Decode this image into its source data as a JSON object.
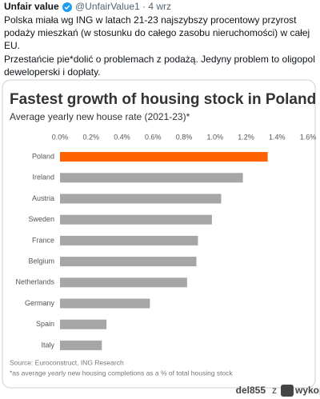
{
  "tweet": {
    "name": "Unfair value",
    "handle": "@UnfairValue1 · 4 wrz",
    "paragraphs": [
      "Polska miała wg ING w latach 21-23 najszybszy procentowy przyrost  podaży mieszkań (w stosunku do całego zasobu nieruchomości) w całej EU.",
      "Przestańcie pie*dolić o problemach z podażą. Jedyny problem to oligopol deweloperski i dopłaty."
    ]
  },
  "chart_data": {
    "type": "hbar",
    "title": "Fastest growth of housing stock in Poland",
    "subtitle": "Average yearly new house rate (2021-23)*",
    "categories": [
      "Poland",
      "Ireland",
      "Austria",
      "Sweden",
      "France",
      "Belgium",
      "Netherlands",
      "Germany",
      "Spain",
      "Italy"
    ],
    "values": [
      1.34,
      1.18,
      1.04,
      0.98,
      0.89,
      0.88,
      0.82,
      0.58,
      0.3,
      0.27
    ],
    "colors": [
      "#ff6200",
      "#a6a6a6",
      "#a6a6a6",
      "#a6a6a6",
      "#a6a6a6",
      "#a6a6a6",
      "#a6a6a6",
      "#a6a6a6",
      "#a6a6a6",
      "#a6a6a6"
    ],
    "xlim": [
      0,
      1.6
    ],
    "xticks": [
      {
        "value": 0,
        "label": "0.0%"
      },
      {
        "value": 0.2,
        "label": "0.2%"
      },
      {
        "value": 0.4,
        "label": "0.4%"
      },
      {
        "value": 0.6,
        "label": "0.6%"
      },
      {
        "value": 0.8,
        "label": "0.8%"
      },
      {
        "value": 1.0,
        "label": "1.0%"
      },
      {
        "value": 1.2,
        "label": "1.2%"
      },
      {
        "value": 1.4,
        "label": "1.4%"
      },
      {
        "value": 1.6,
        "label": "1.6%"
      }
    ],
    "grid": false,
    "source": "Source: Euroconstruct, ING Research",
    "footnote": "*as average yearly new housing completions as a % of total housing stock"
  },
  "footer": {
    "user": "del855",
    "word": "z",
    "site": "wykop.pl"
  }
}
